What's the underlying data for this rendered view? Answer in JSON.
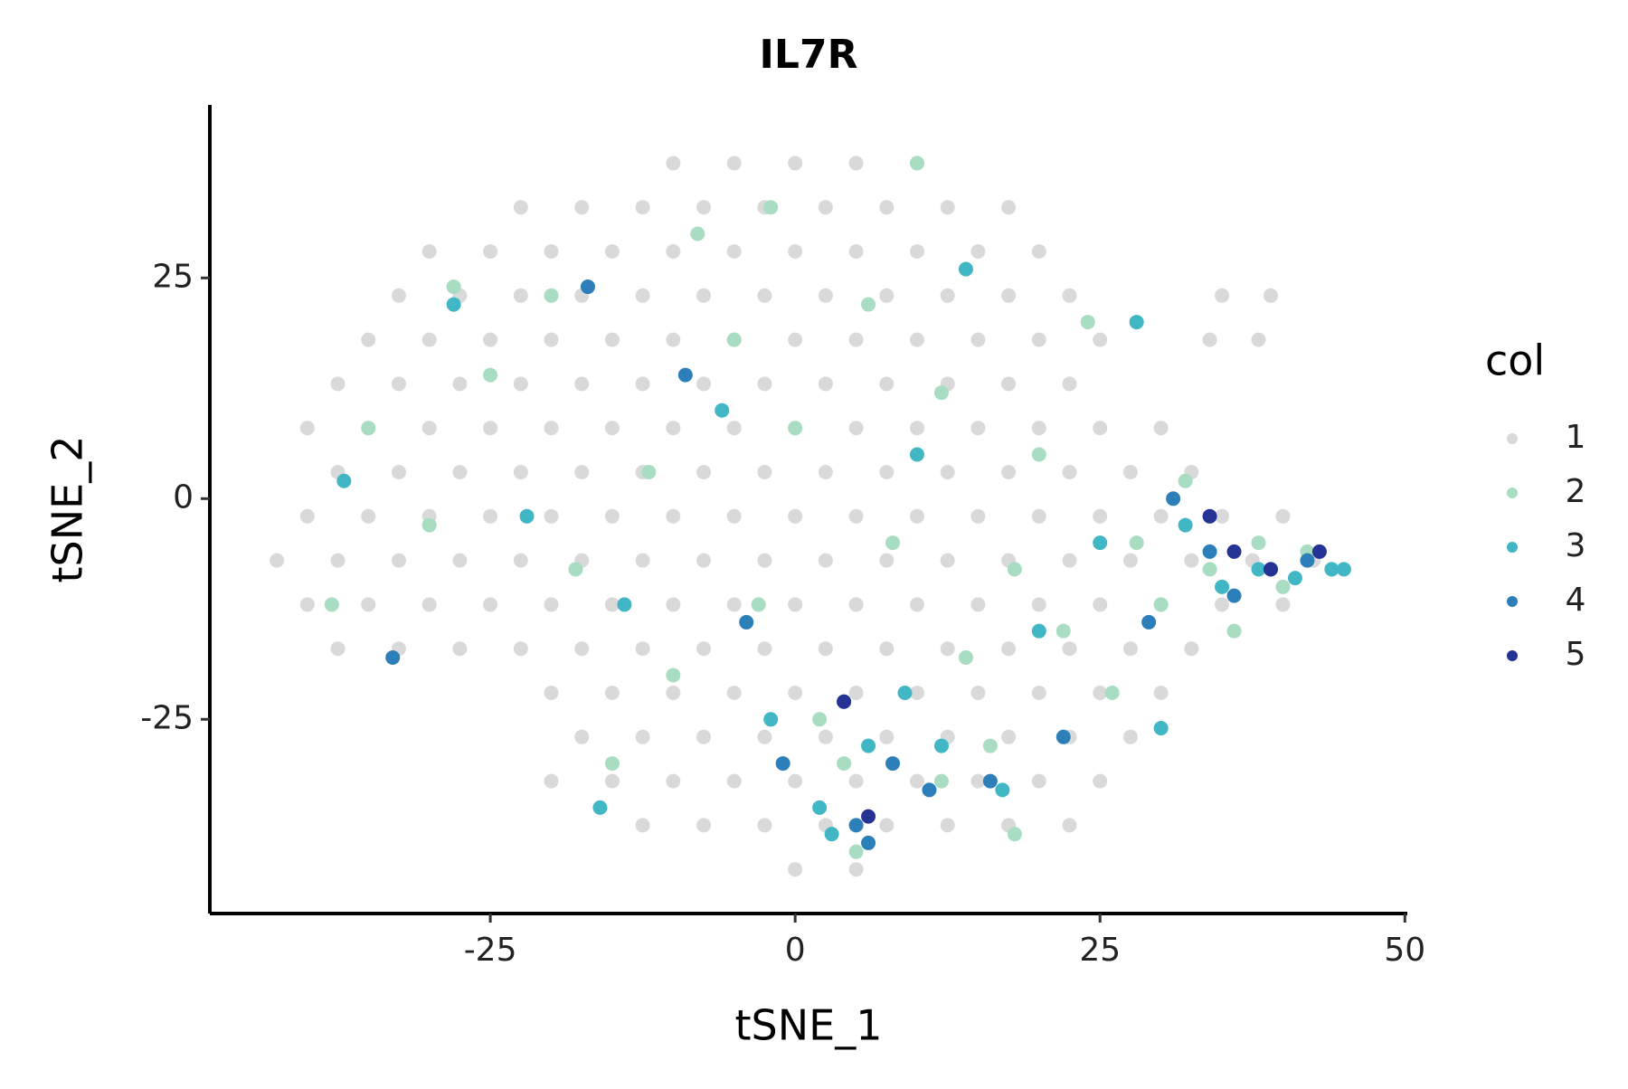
{
  "chart_data": {
    "type": "scatter",
    "title": "IL7R",
    "x_label": "tSNE_1",
    "y_label": "tSNE_2",
    "legend_title": "col",
    "legend_position": "right",
    "grid": false,
    "xlim": [
      -48,
      50.2
    ],
    "ylim": [
      -47,
      44.6
    ],
    "xticks": [
      -25,
      0,
      25,
      50
    ],
    "yticks": [
      -25,
      0,
      25
    ],
    "series": [
      {
        "name": "1",
        "color": "#d9d9d9",
        "x": [
          -10,
          -5,
          0,
          5,
          10,
          -22.5,
          -17.5,
          -12.5,
          -7.5,
          -2.5,
          2.5,
          7.5,
          12.5,
          17.5,
          -30,
          -25,
          -20,
          -15,
          -10,
          -5,
          0,
          5,
          10,
          15,
          20,
          -32.5,
          -27.5,
          -22.5,
          -17.5,
          -12.5,
          -7.5,
          -2.5,
          2.5,
          7.5,
          12.5,
          17.5,
          22.5,
          35,
          39,
          -35,
          -30,
          -25,
          -20,
          -15,
          -10,
          -5,
          0,
          5,
          10,
          15,
          20,
          25,
          34,
          38,
          -37.5,
          -32.5,
          -27.5,
          -22.5,
          -17.5,
          -12.5,
          -7.5,
          -2.5,
          2.5,
          7.5,
          12.5,
          17.5,
          22.5,
          -40,
          -35,
          -30,
          -25,
          -20,
          -15,
          -10,
          -5,
          0,
          5,
          10,
          15,
          20,
          25,
          30,
          -37.5,
          -32.5,
          -27.5,
          -22.5,
          -17.5,
          -12.5,
          -7.5,
          -2.5,
          2.5,
          7.5,
          12.5,
          17.5,
          22.5,
          27.5,
          32.5,
          -40,
          -35,
          -30,
          -25,
          -20,
          -15,
          -10,
          -5,
          0,
          5,
          10,
          15,
          20,
          25,
          30,
          35,
          40,
          -42.5,
          -37.5,
          -32.5,
          -27.5,
          -22.5,
          -17.5,
          -12.5,
          -7.5,
          -2.5,
          2.5,
          7.5,
          12.5,
          17.5,
          22.5,
          27.5,
          32.5,
          37.5,
          42.5,
          -40,
          -35,
          -30,
          -25,
          -20,
          -15,
          -10,
          -5,
          0,
          5,
          10,
          15,
          20,
          25,
          30,
          35,
          40,
          -37.5,
          -32.5,
          -27.5,
          -22.5,
          -17.5,
          -12.5,
          -7.5,
          -2.5,
          2.5,
          7.5,
          12.5,
          17.5,
          22.5,
          27.5,
          32.5,
          -20,
          -15,
          -10,
          -5,
          0,
          5,
          10,
          15,
          20,
          25,
          30,
          -17.5,
          -12.5,
          -7.5,
          -2.5,
          2.5,
          7.5,
          12.5,
          17.5,
          22.5,
          27.5,
          -20,
          -15,
          -10,
          -5,
          0,
          5,
          10,
          15,
          20,
          25,
          -12.5,
          -7.5,
          -2.5,
          2.5,
          7.5,
          12.5,
          17.5,
          22.5,
          0,
          5
        ],
        "values": [
          38,
          38,
          38,
          38,
          38,
          33,
          33,
          33,
          33,
          33,
          33,
          33,
          33,
          33,
          28,
          28,
          28,
          28,
          28,
          28,
          28,
          28,
          28,
          28,
          28,
          23,
          23,
          23,
          23,
          23,
          23,
          23,
          23,
          23,
          23,
          23,
          23,
          23,
          23,
          18,
          18,
          18,
          18,
          18,
          18,
          18,
          18,
          18,
          18,
          18,
          18,
          18,
          18,
          18,
          13,
          13,
          13,
          13,
          13,
          13,
          13,
          13,
          13,
          13,
          13,
          13,
          13,
          8,
          8,
          8,
          8,
          8,
          8,
          8,
          8,
          8,
          8,
          8,
          8,
          8,
          8,
          8,
          3,
          3,
          3,
          3,
          3,
          3,
          3,
          3,
          3,
          3,
          3,
          3,
          3,
          3,
          3,
          -2,
          -2,
          -2,
          -2,
          -2,
          -2,
          -2,
          -2,
          -2,
          -2,
          -2,
          -2,
          -2,
          -2,
          -2,
          -2,
          -2,
          -7,
          -7,
          -7,
          -7,
          -7,
          -7,
          -7,
          -7,
          -7,
          -7,
          -7,
          -7,
          -7,
          -7,
          -7,
          -7,
          -7,
          -7,
          -12,
          -12,
          -12,
          -12,
          -12,
          -12,
          -12,
          -12,
          -12,
          -12,
          -12,
          -12,
          -12,
          -12,
          -12,
          -12,
          -12,
          -17,
          -17,
          -17,
          -17,
          -17,
          -17,
          -17,
          -17,
          -17,
          -17,
          -17,
          -17,
          -17,
          -17,
          -17,
          -22,
          -22,
          -22,
          -22,
          -22,
          -22,
          -22,
          -22,
          -22,
          -22,
          -22,
          -27,
          -27,
          -27,
          -27,
          -27,
          -27,
          -27,
          -27,
          -27,
          -27,
          -32,
          -32,
          -32,
          -32,
          -32,
          -32,
          -32,
          -32,
          -32,
          -32,
          -37,
          -37,
          -37,
          -37,
          -37,
          -37,
          -37,
          -37,
          -42,
          -42
        ]
      },
      {
        "name": "2",
        "color": "#a8ddc1",
        "x": [
          -35,
          -30,
          -25,
          -20,
          -18,
          -12,
          -10,
          -8,
          -5,
          -3,
          0,
          2,
          4,
          6,
          8,
          10,
          12,
          14,
          16,
          18,
          20,
          22,
          24,
          26,
          28,
          30,
          32,
          34,
          36,
          38,
          40,
          42,
          44,
          -38,
          -28,
          -15,
          5,
          12,
          18,
          -2
        ],
        "values": [
          8,
          -3,
          14,
          23,
          -8,
          3,
          -20,
          30,
          18,
          -12,
          8,
          -25,
          -30,
          22,
          -5,
          38,
          12,
          -18,
          -28,
          -8,
          5,
          -15,
          20,
          -22,
          -5,
          -12,
          2,
          -8,
          -15,
          -5,
          -10,
          -6,
          -8,
          -12,
          24,
          -30,
          -40,
          -32,
          -38,
          33
        ]
      },
      {
        "name": "3",
        "color": "#41b6c4",
        "x": [
          -37,
          -28,
          -22,
          -14,
          -6,
          -2,
          2,
          6,
          9,
          12,
          14,
          17,
          20,
          25,
          28,
          32,
          35,
          38,
          41,
          44,
          45,
          3,
          -16,
          30,
          10
        ],
        "values": [
          2,
          22,
          -2,
          -12,
          10,
          -25,
          -35,
          -28,
          -22,
          -28,
          26,
          -33,
          -15,
          -5,
          20,
          -3,
          -10,
          -8,
          -9,
          -8,
          -8,
          -38,
          -35,
          -26,
          5
        ]
      },
      {
        "name": "4",
        "color": "#2c7fb8",
        "x": [
          -17,
          -9,
          -4,
          4,
          5,
          6,
          8,
          11,
          16,
          22,
          31,
          34,
          36,
          39,
          42,
          -33,
          29,
          -1
        ],
        "values": [
          24,
          14,
          -14,
          -23,
          -37,
          -39,
          -30,
          -33,
          -32,
          -27,
          0,
          -6,
          -11,
          -8,
          -7,
          -18,
          -14,
          -30
        ]
      },
      {
        "name": "5",
        "color": "#253494",
        "x": [
          4,
          6,
          34,
          36,
          39,
          43
        ],
        "values": [
          -23,
          -36,
          -2,
          -6,
          -8,
          -6
        ]
      }
    ]
  }
}
